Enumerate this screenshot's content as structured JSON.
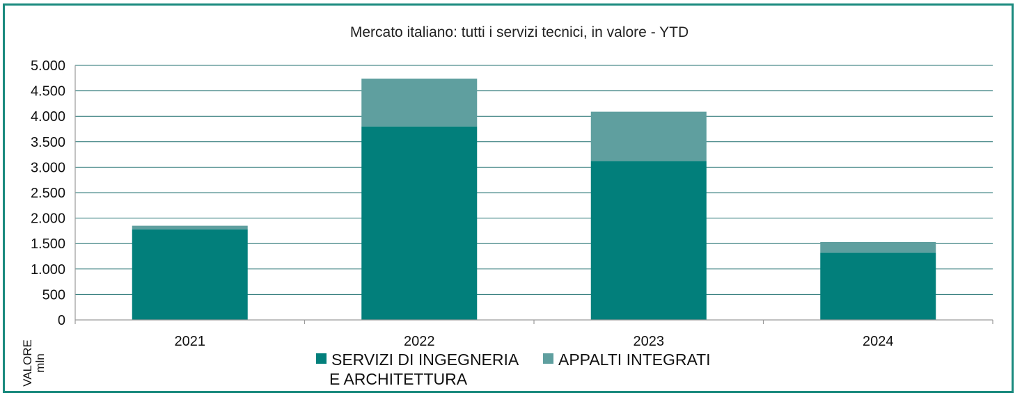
{
  "chart_data": {
    "type": "bar",
    "stacked": true,
    "title": "Mercato italiano: tutti i servizi tecnici, in valore  - YTD",
    "ylabel": [
      "VALORE",
      "mln"
    ],
    "categories": [
      "2021",
      "2022",
      "2023",
      "2024"
    ],
    "ylim": [
      0,
      5000
    ],
    "yticks": [
      0,
      500,
      1000,
      1500,
      2000,
      2500,
      3000,
      3500,
      4000,
      4500,
      5000
    ],
    "ytick_labels": [
      "0",
      "500",
      "1.000",
      "1.500",
      "2.000",
      "2.500",
      "3.000",
      "3.500",
      "4.000",
      "4.500",
      "5.000"
    ],
    "grid": true,
    "legend_position": "bottom",
    "series": [
      {
        "name": "SERVIZI DI INGEGNERIA E ARCHITETTURA",
        "name_lines": [
          "SERVIZI DI INGEGNERIA",
          "E ARCHITETTURA"
        ],
        "color": "#027f7b",
        "values": [
          1780,
          3800,
          3120,
          1320
        ]
      },
      {
        "name": "APPALTI INTEGRATI",
        "name_lines": [
          "APPALTI INTEGRATI"
        ],
        "color": "#5f9f9f",
        "values": [
          70,
          940,
          970,
          210
        ]
      }
    ]
  },
  "colors": {
    "frame": "#1a8a7e",
    "grid": "#1f6f6f",
    "axis": "#9a9a9a"
  }
}
